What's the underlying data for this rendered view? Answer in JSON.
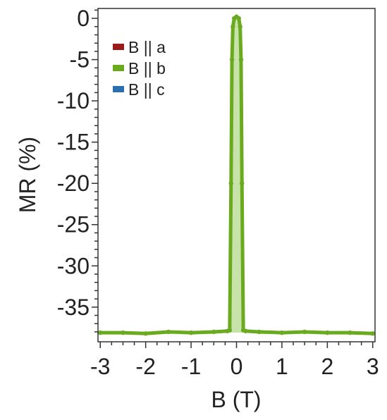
{
  "chart_data": {
    "type": "line",
    "xlabel": "B (T)",
    "ylabel": "MR (%)",
    "xlim": [
      -3.05,
      3.05
    ],
    "ylim": [
      -39.2,
      1.2
    ],
    "x_ticks": [
      -3,
      -2,
      -1,
      0,
      1,
      2,
      3
    ],
    "y_ticks": [
      0,
      -5,
      -10,
      -15,
      -20,
      -25,
      -30,
      -35
    ],
    "grid": false,
    "legend_position": "top-left",
    "legend": [
      {
        "label": "B || a",
        "color": "#9b1b1b"
      },
      {
        "label": "B || b",
        "color": "#6aaa1e"
      },
      {
        "label": "B || c",
        "color": "#2a6fb0"
      }
    ],
    "series": [
      {
        "name": "B || b",
        "color": "#6aaa1e",
        "fill_color": "#b6d98c",
        "x": [
          -3.0,
          -2.5,
          -2.0,
          -1.5,
          -1.0,
          -0.5,
          -0.2,
          -0.15,
          -0.12,
          -0.1,
          -0.08,
          -0.05,
          0.0,
          0.05,
          0.08,
          0.1,
          0.12,
          0.15,
          0.2,
          0.5,
          1.0,
          1.5,
          2.0,
          2.5,
          3.0
        ],
        "y": [
          -38.1,
          -38.1,
          -38.2,
          -38.0,
          -38.1,
          -38.0,
          -37.9,
          -37.8,
          -20.0,
          -5.0,
          -1.0,
          0.0,
          0.2,
          0.0,
          -1.0,
          -5.0,
          -20.0,
          -37.8,
          -37.9,
          -38.0,
          -38.1,
          -38.0,
          -38.1,
          -38.1,
          -38.2
        ]
      }
    ]
  }
}
